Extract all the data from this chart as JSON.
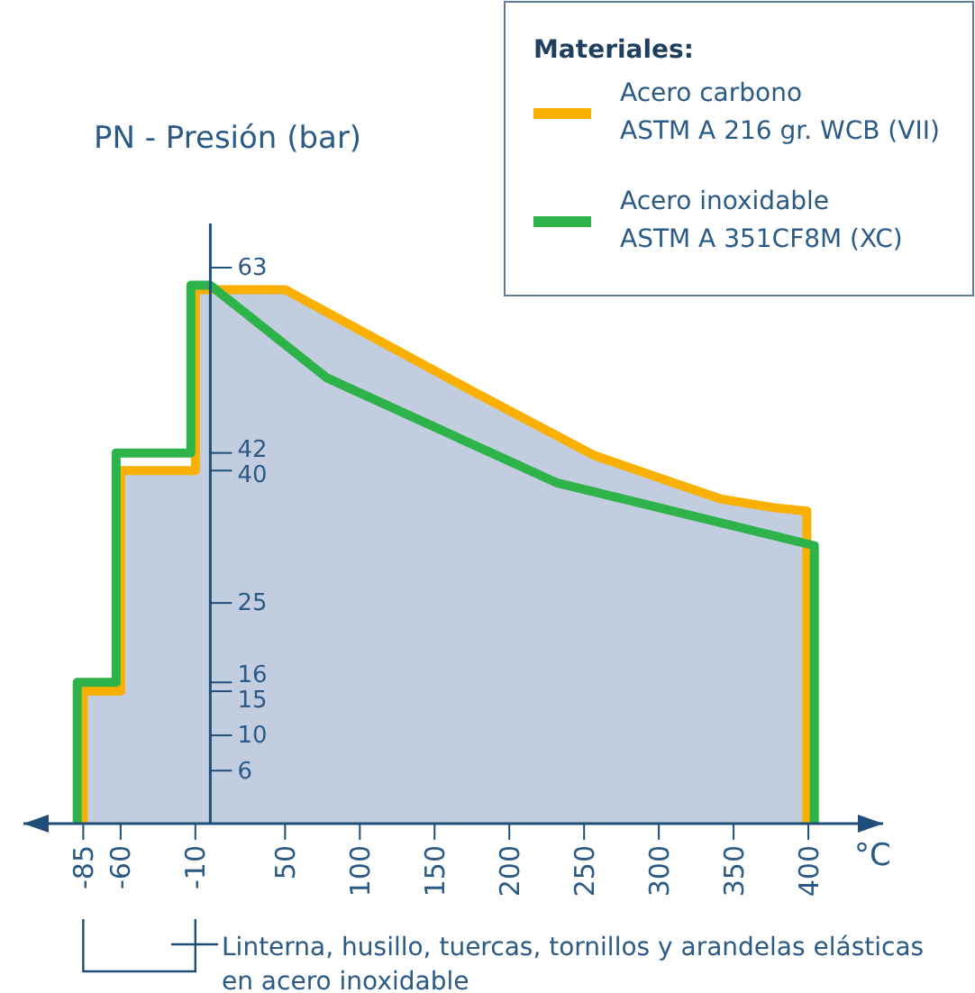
{
  "chart_data": {
    "type": "area",
    "ylabel": "PN - Presión (bar)",
    "xlabel": "°C",
    "legend_title": "Materiales:",
    "xlim": [
      -125,
      450
    ],
    "xticks": [
      -85,
      -60,
      -10,
      50,
      100,
      150,
      200,
      250,
      300,
      350,
      400
    ],
    "ylim": [
      0,
      68
    ],
    "yticks": [
      6,
      10,
      15,
      16,
      25,
      40,
      42,
      63
    ],
    "series": [
      {
        "name": "Acero carbono\nASTM A 216 gr. WCB (VII)",
        "color": "#f9b000",
        "x": [
          -85,
          -85,
          -60,
          -60,
          -10,
          -10,
          50,
          110,
          172,
          257,
          341,
          377,
          399,
          399
        ],
        "values": [
          0,
          15,
          15,
          40,
          40,
          60.5,
          60.5,
          55,
          49.3,
          41.7,
          36.8,
          35.8,
          35.4,
          0
        ]
      },
      {
        "name": "Acero inoxidable\nASTM A 351CF8M (XC)",
        "color": "#2db34a",
        "type": "line",
        "x": [
          -89,
          -89,
          -63,
          -63,
          -13,
          -13,
          0,
          78,
          232,
          404,
          404
        ],
        "values": [
          0,
          16,
          16,
          42,
          42,
          61,
          61,
          50.5,
          38.6,
          31.5,
          0
        ]
      }
    ],
    "annotations": [
      "Linterna, husillo, tuercas, tornillos y arandelas elásticas en acero inoxidable"
    ],
    "legend": "top right",
    "grid": false
  }
}
